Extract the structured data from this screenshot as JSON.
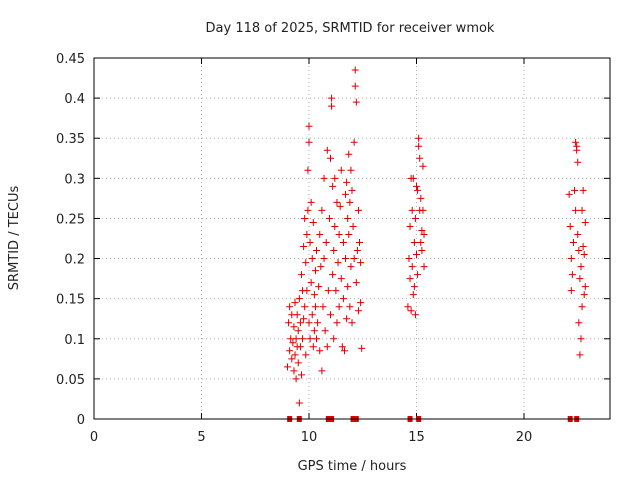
{
  "chart_data": {
    "type": "scatter",
    "title": "Day 118 of 2025, SRMTID for receiver wmok",
    "xlabel": "GPS time / hours",
    "ylabel": "SRMTID / TECUs",
    "xlim": [
      0,
      24
    ],
    "ylim": [
      0,
      0.45
    ],
    "grid": true,
    "marker": "plus",
    "color": "#dd0000",
    "xticks": [
      0,
      5,
      10,
      15,
      20
    ],
    "xtick_labels": [
      "0",
      "5",
      "10",
      "15",
      "20"
    ],
    "yticks": [
      0,
      0.05,
      0.1,
      0.15,
      0.2,
      0.25,
      0.3,
      0.35,
      0.4,
      0.45
    ],
    "ytick_labels": [
      "0",
      "0.05",
      "0.1",
      "0.15",
      "0.2",
      "0.25",
      "0.3",
      "0.35",
      "0.4",
      "0.45"
    ],
    "zero_markers_x": [
      9.1,
      9.55,
      10.9,
      11.05,
      12.05,
      12.2,
      14.7,
      15.1,
      22.15,
      22.45
    ],
    "series": [
      {
        "name": "SRMTID",
        "points": [
          [
            9.0,
            0.065
          ],
          [
            9.05,
            0.12
          ],
          [
            9.1,
            0.085
          ],
          [
            9.1,
            0.14
          ],
          [
            9.15,
            0.1
          ],
          [
            9.2,
            0.075
          ],
          [
            9.2,
            0.13
          ],
          [
            9.25,
            0.095
          ],
          [
            9.3,
            0.06
          ],
          [
            9.3,
            0.115
          ],
          [
            9.35,
            0.145
          ],
          [
            9.35,
            0.08
          ],
          [
            9.4,
            0.1
          ],
          [
            9.4,
            0.05
          ],
          [
            9.45,
            0.13
          ],
          [
            9.45,
            0.09
          ],
          [
            9.5,
            0.11
          ],
          [
            9.5,
            0.07
          ],
          [
            9.55,
            0.15
          ],
          [
            9.55,
            0.02
          ],
          [
            9.6,
            0.12
          ],
          [
            9.6,
            0.09
          ],
          [
            9.65,
            0.18
          ],
          [
            9.65,
            0.055
          ],
          [
            9.7,
            0.16
          ],
          [
            9.7,
            0.1
          ],
          [
            9.75,
            0.215
          ],
          [
            9.75,
            0.125
          ],
          [
            9.8,
            0.25
          ],
          [
            9.8,
            0.14
          ],
          [
            9.85,
            0.195
          ],
          [
            9.85,
            0.08
          ],
          [
            9.9,
            0.23
          ],
          [
            9.9,
            0.16
          ],
          [
            9.95,
            0.26
          ],
          [
            9.95,
            0.31
          ],
          [
            10.0,
            0.365
          ],
          [
            10.0,
            0.345
          ],
          [
            10.0,
            0.12
          ],
          [
            10.05,
            0.22
          ],
          [
            10.05,
            0.1
          ],
          [
            10.1,
            0.27
          ],
          [
            10.1,
            0.17
          ],
          [
            10.15,
            0.2
          ],
          [
            10.15,
            0.13
          ],
          [
            10.2,
            0.245
          ],
          [
            10.2,
            0.09
          ],
          [
            10.25,
            0.11
          ],
          [
            10.25,
            0.155
          ],
          [
            10.3,
            0.185
          ],
          [
            10.3,
            0.14
          ],
          [
            10.35,
            0.21
          ],
          [
            10.35,
            0.1
          ],
          [
            10.4,
            0.12
          ],
          [
            10.45,
            0.165
          ],
          [
            10.5,
            0.085
          ],
          [
            10.5,
            0.23
          ],
          [
            10.55,
            0.19
          ],
          [
            10.6,
            0.26
          ],
          [
            10.6,
            0.06
          ],
          [
            10.65,
            0.14
          ],
          [
            10.7,
            0.3
          ],
          [
            10.7,
            0.2
          ],
          [
            10.75,
            0.11
          ],
          [
            10.8,
            0.22
          ],
          [
            10.85,
            0.335
          ],
          [
            10.85,
            0.09
          ],
          [
            10.9,
            0.16
          ],
          [
            10.95,
            0.25
          ],
          [
            11.0,
            0.325
          ],
          [
            11.0,
            0.13
          ],
          [
            11.05,
            0.4
          ],
          [
            11.05,
            0.39
          ],
          [
            11.1,
            0.29
          ],
          [
            11.1,
            0.18
          ],
          [
            11.15,
            0.21
          ],
          [
            11.15,
            0.1
          ],
          [
            11.2,
            0.24
          ],
          [
            11.2,
            0.3
          ],
          [
            11.25,
            0.16
          ],
          [
            11.3,
            0.27
          ],
          [
            11.3,
            0.12
          ],
          [
            11.35,
            0.195
          ],
          [
            11.4,
            0.23
          ],
          [
            11.4,
            0.14
          ],
          [
            11.45,
            0.265
          ],
          [
            11.5,
            0.31
          ],
          [
            11.5,
            0.175
          ],
          [
            11.55,
            0.09
          ],
          [
            11.6,
            0.22
          ],
          [
            11.6,
            0.15
          ],
          [
            11.65,
            0.085
          ],
          [
            11.7,
            0.28
          ],
          [
            11.7,
            0.2
          ],
          [
            11.75,
            0.295
          ],
          [
            11.75,
            0.125
          ],
          [
            11.8,
            0.25
          ],
          [
            11.8,
            0.165
          ],
          [
            11.85,
            0.33
          ],
          [
            11.85,
            0.23
          ],
          [
            11.9,
            0.27
          ],
          [
            11.9,
            0.14
          ],
          [
            11.95,
            0.19
          ],
          [
            11.95,
            0.31
          ],
          [
            12.0,
            0.285
          ],
          [
            12.0,
            0.12
          ],
          [
            12.05,
            0.24
          ],
          [
            12.1,
            0.345
          ],
          [
            12.1,
            0.2
          ],
          [
            12.15,
            0.435
          ],
          [
            12.15,
            0.415
          ],
          [
            12.2,
            0.395
          ],
          [
            12.2,
            0.17
          ],
          [
            12.25,
            0.21
          ],
          [
            12.3,
            0.26
          ],
          [
            12.3,
            0.135
          ],
          [
            12.35,
            0.22
          ],
          [
            12.4,
            0.195
          ],
          [
            12.4,
            0.145
          ],
          [
            12.45,
            0.088
          ],
          [
            14.6,
            0.14
          ],
          [
            14.65,
            0.2
          ],
          [
            14.7,
            0.24
          ],
          [
            14.7,
            0.175
          ],
          [
            14.75,
            0.3
          ],
          [
            14.75,
            0.135
          ],
          [
            14.8,
            0.26
          ],
          [
            14.8,
            0.19
          ],
          [
            14.85,
            0.3
          ],
          [
            14.85,
            0.155
          ],
          [
            14.9,
            0.22
          ],
          [
            14.9,
            0.165
          ],
          [
            14.95,
            0.25
          ],
          [
            14.95,
            0.13
          ],
          [
            15.0,
            0.205
          ],
          [
            15.0,
            0.29
          ],
          [
            15.05,
            0.285
          ],
          [
            15.05,
            0.18
          ],
          [
            15.1,
            0.35
          ],
          [
            15.1,
            0.34
          ],
          [
            15.15,
            0.325
          ],
          [
            15.15,
            0.26
          ],
          [
            15.2,
            0.275
          ],
          [
            15.2,
            0.22
          ],
          [
            15.25,
            0.235
          ],
          [
            15.25,
            0.21
          ],
          [
            15.3,
            0.315
          ],
          [
            15.3,
            0.26
          ],
          [
            15.35,
            0.23
          ],
          [
            15.35,
            0.19
          ],
          [
            22.1,
            0.28
          ],
          [
            22.15,
            0.24
          ],
          [
            22.2,
            0.2
          ],
          [
            22.2,
            0.16
          ],
          [
            22.25,
            0.18
          ],
          [
            22.3,
            0.22
          ],
          [
            22.35,
            0.285
          ],
          [
            22.4,
            0.26
          ],
          [
            22.4,
            0.345
          ],
          [
            22.45,
            0.34
          ],
          [
            22.45,
            0.335
          ],
          [
            22.5,
            0.32
          ],
          [
            22.5,
            0.23
          ],
          [
            22.55,
            0.21
          ],
          [
            22.55,
            0.12
          ],
          [
            22.6,
            0.08
          ],
          [
            22.6,
            0.175
          ],
          [
            22.65,
            0.19
          ],
          [
            22.65,
            0.1
          ],
          [
            22.7,
            0.14
          ],
          [
            22.7,
            0.26
          ],
          [
            22.75,
            0.285
          ],
          [
            22.75,
            0.215
          ],
          [
            22.8,
            0.205
          ],
          [
            22.8,
            0.155
          ],
          [
            22.85,
            0.245
          ],
          [
            22.85,
            0.165
          ]
        ]
      }
    ]
  }
}
